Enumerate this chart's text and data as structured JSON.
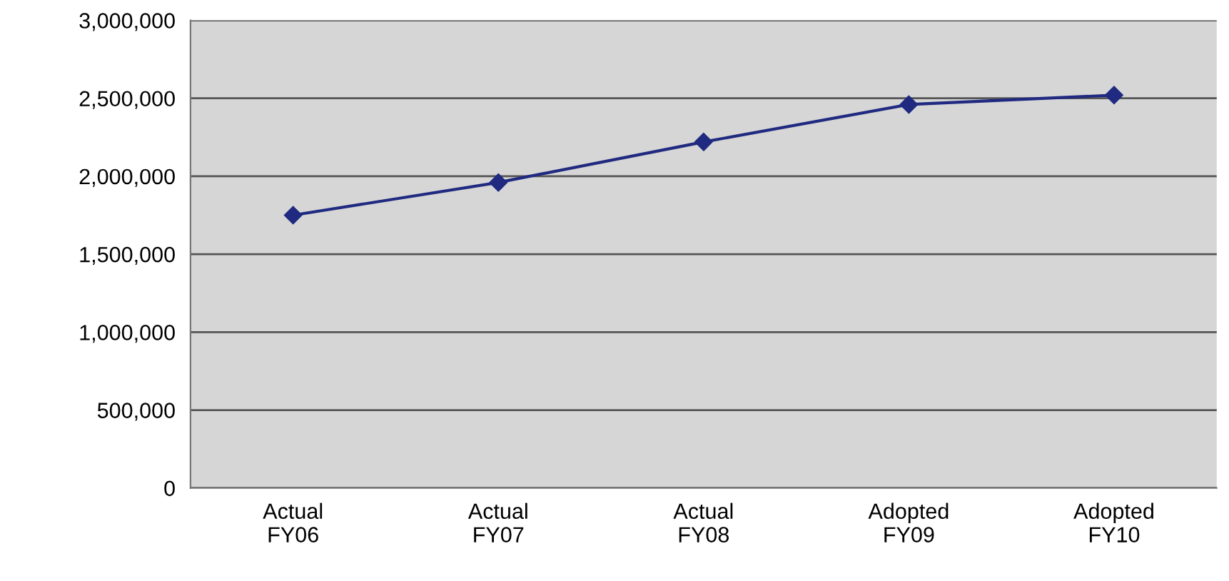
{
  "chart_data": {
    "type": "line",
    "categories": [
      "Actual\nFY06",
      "Actual\nFY07",
      "Actual\nFY08",
      "Adopted\nFY09",
      "Adopted\nFY10"
    ],
    "series": [
      {
        "color": "#1f2a80",
        "values": [
          1750000,
          1960000,
          2220000,
          2460000,
          2520000
        ]
      }
    ],
    "ylim": [
      0,
      3000000
    ],
    "yticks": [
      {
        "value": 0,
        "label": "0"
      },
      {
        "value": 500000,
        "label": "500,000"
      },
      {
        "value": 1000000,
        "label": "1,000,000"
      },
      {
        "value": 1500000,
        "label": "1,500,000"
      },
      {
        "value": 2000000,
        "label": "2,000,000"
      },
      {
        "value": 2500000,
        "label": "2,500,000"
      },
      {
        "value": 3000000,
        "label": "3,000,000"
      }
    ],
    "grid": "y",
    "marker": "diamond",
    "line_style": "solid"
  }
}
